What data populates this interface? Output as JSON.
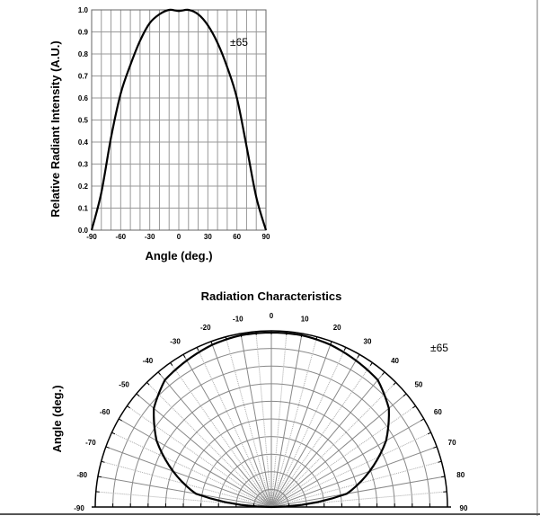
{
  "chart_data": [
    {
      "type": "line",
      "title": "",
      "xlabel": "Angle (deg.)",
      "ylabel": "Relative Radiant Intensity (A.U.)",
      "xlim": [
        -90,
        90
      ],
      "ylim": [
        0,
        1.0
      ],
      "grid": true,
      "xticks": [
        "-90",
        "-60",
        "-30",
        "0",
        "30",
        "60",
        "90"
      ],
      "yticks": [
        "0.0",
        "0.1",
        "0.2",
        "0.3",
        "0.4",
        "0.5",
        "0.6",
        "0.7",
        "0.8",
        "0.9",
        "1.0"
      ],
      "annotation": "±65",
      "x": [
        -90,
        -80,
        -70,
        -60,
        -50,
        -40,
        -30,
        -20,
        -10,
        0,
        10,
        20,
        30,
        40,
        50,
        60,
        70,
        80,
        90
      ],
      "y": [
        0,
        0.17,
        0.42,
        0.62,
        0.75,
        0.86,
        0.94,
        0.98,
        1.0,
        0.995,
        1.0,
        0.98,
        0.93,
        0.85,
        0.74,
        0.6,
        0.38,
        0.15,
        0
      ]
    },
    {
      "type": "polar",
      "title": "Radiation Characteristics",
      "ylabel": "Angle (deg.)",
      "annotation": "±65",
      "angle_ticks": [
        "-90",
        "-80",
        "-70",
        "-60",
        "-50",
        "-40",
        "-30",
        "-20",
        "-10",
        "0",
        "10",
        "20",
        "30",
        "40",
        "50",
        "60",
        "70",
        "80",
        "90"
      ],
      "theta": [
        -90,
        -80,
        -70,
        -60,
        -50,
        -40,
        -30,
        -20,
        -10,
        0,
        10,
        20,
        30,
        40,
        50,
        60,
        70,
        80,
        90
      ],
      "r": [
        0,
        0.44,
        0.6,
        0.76,
        0.88,
        0.95,
        0.97,
        0.99,
        1.0,
        1.0,
        1.0,
        0.99,
        0.97,
        0.95,
        0.88,
        0.76,
        0.6,
        0.44,
        0
      ]
    }
  ]
}
